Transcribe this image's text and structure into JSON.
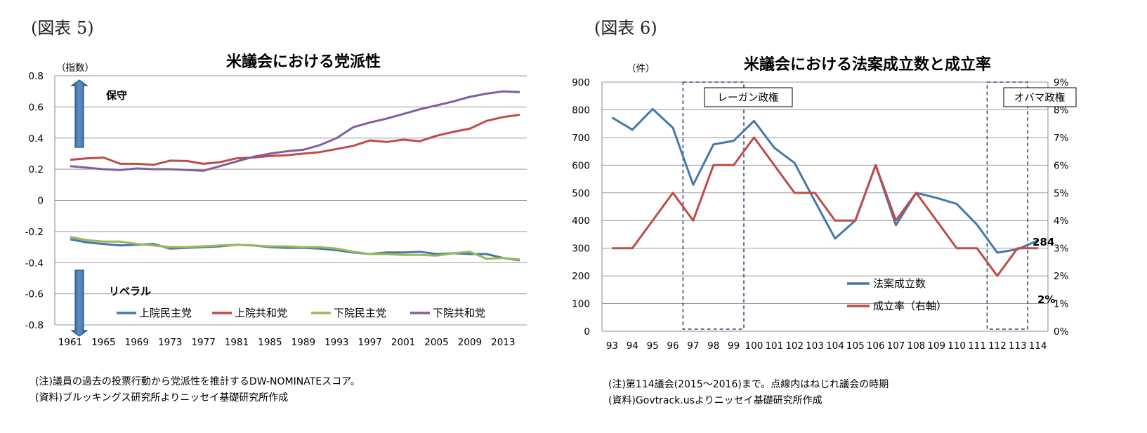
{
  "figures": [
    {
      "label": "(図表 5)",
      "notes": [
        "(注)議員の過去の投票行動から党派性を推計するDW-NOMINATEスコア。",
        "(資料)ブルッキングス研究所よりニッセイ基礎研究所作成"
      ],
      "annotations": {
        "up_label": "保守",
        "down_label": "リベラル"
      }
    },
    {
      "label": "(図表 6)",
      "notes": [
        "(注)第114議会(2015～2016)まで。点線内はねじれ議会の時期",
        "(資料)Govtrack.usよりニッセイ基礎研究所作成"
      ],
      "annotations": {
        "reagan": "レーガン政権",
        "obama": "オバマ政権",
        "last_count": "284",
        "last_rate": "2%"
      }
    }
  ],
  "chart_data": [
    {
      "type": "line",
      "title": "米議会における党派性",
      "ylabel": "（指数）",
      "ylim": [
        -0.8,
        0.8
      ],
      "yticks": [
        "0.8",
        "0.6",
        "0.4",
        "0.2",
        "0",
        "-0.2",
        "-0.4",
        "-0.6",
        "-0.8"
      ],
      "ytick_values": [
        0.8,
        0.6,
        0.4,
        0.2,
        0,
        -0.2,
        -0.4,
        -0.6,
        -0.8
      ],
      "x": [
        1961,
        1963,
        1965,
        1967,
        1969,
        1971,
        1973,
        1975,
        1977,
        1979,
        1981,
        1983,
        1985,
        1987,
        1989,
        1991,
        1993,
        1995,
        1997,
        1999,
        2001,
        2003,
        2005,
        2007,
        2009,
        2011,
        2013,
        2015
      ],
      "xticks": [
        "1961",
        "1965",
        "1969",
        "1973",
        "1977",
        "1981",
        "1985",
        "1989",
        "1993",
        "1997",
        "2001",
        "2005",
        "2009",
        "2013"
      ],
      "xtick_values": [
        1961,
        1965,
        1969,
        1973,
        1977,
        1981,
        1985,
        1989,
        1993,
        1997,
        2001,
        2005,
        2009,
        2013
      ],
      "series": [
        {
          "name": "上院民主党",
          "color": "#4677ab",
          "values": [
            -0.25,
            -0.27,
            -0.28,
            -0.29,
            -0.285,
            -0.28,
            -0.31,
            -0.305,
            -0.3,
            -0.295,
            -0.285,
            -0.29,
            -0.3,
            -0.305,
            -0.305,
            -0.31,
            -0.32,
            -0.335,
            -0.345,
            -0.335,
            -0.335,
            -0.33,
            -0.345,
            -0.34,
            -0.345,
            -0.345,
            -0.37,
            -0.385
          ]
        },
        {
          "name": "上院共和党",
          "color": "#bf4b48",
          "values": [
            0.26,
            0.27,
            0.275,
            0.235,
            0.235,
            0.228,
            0.255,
            0.253,
            0.235,
            0.245,
            0.27,
            0.275,
            0.285,
            0.29,
            0.3,
            0.31,
            0.33,
            0.35,
            0.385,
            0.375,
            0.39,
            0.38,
            0.415,
            0.44,
            0.46,
            0.51,
            0.535,
            0.55
          ]
        },
        {
          "name": "下院民主党",
          "color": "#98b953",
          "values": [
            -0.235,
            -0.255,
            -0.265,
            -0.265,
            -0.28,
            -0.29,
            -0.3,
            -0.3,
            -0.295,
            -0.29,
            -0.285,
            -0.29,
            -0.295,
            -0.295,
            -0.3,
            -0.3,
            -0.31,
            -0.33,
            -0.345,
            -0.345,
            -0.35,
            -0.35,
            -0.355,
            -0.34,
            -0.33,
            -0.375,
            -0.37,
            -0.38
          ]
        },
        {
          "name": "下院共和党",
          "color": "#7f5f9f",
          "values": [
            0.22,
            0.21,
            0.2,
            0.195,
            0.205,
            0.2,
            0.2,
            0.195,
            0.19,
            0.22,
            0.25,
            0.28,
            0.3,
            0.315,
            0.325,
            0.355,
            0.4,
            0.47,
            0.5,
            0.525,
            0.555,
            0.585,
            0.61,
            0.635,
            0.665,
            0.685,
            0.7,
            0.695
          ]
        }
      ]
    },
    {
      "type": "line",
      "title": "米議会における法案成立数と成立率",
      "ylabel": "（件）",
      "ylim": [
        0,
        900
      ],
      "y2lim": [
        0,
        9
      ],
      "yticks": [
        "900",
        "800",
        "700",
        "600",
        "500",
        "400",
        "300",
        "200",
        "100",
        "0"
      ],
      "ytick_values": [
        900,
        800,
        700,
        600,
        500,
        400,
        300,
        200,
        100,
        0
      ],
      "y2ticks": [
        "9%",
        "8%",
        "7%",
        "6%",
        "5%",
        "4%",
        "3%",
        "2%",
        "1%",
        "0%"
      ],
      "y2tick_values": [
        9,
        8,
        7,
        6,
        5,
        4,
        3,
        2,
        1,
        0
      ],
      "categories": [
        "93",
        "94",
        "95",
        "96",
        "97",
        "98",
        "99",
        "100",
        "101",
        "102",
        "103",
        "104",
        "105",
        "106",
        "107",
        "108",
        "109",
        "110",
        "111",
        "112",
        "113",
        "114"
      ],
      "shaded_periods": [
        [
          "97",
          "99"
        ],
        [
          "112",
          "113"
        ]
      ],
      "series": [
        {
          "name": "法案成立数",
          "axis": "left",
          "color": "#4677ab",
          "values": [
            772,
            728,
            803,
            735,
            529,
            675,
            688,
            760,
            663,
            608,
            470,
            335,
            400,
            600,
            383,
            500,
            482,
            460,
            385,
            284,
            296,
            328
          ]
        },
        {
          "name": "成立率（右軸）",
          "axis": "right",
          "color": "#bf4b48",
          "values": [
            3,
            3,
            4,
            5,
            4,
            6,
            6,
            7,
            6,
            5,
            5,
            4,
            4,
            6,
            4,
            5,
            4,
            3,
            3,
            2,
            3,
            3
          ]
        }
      ]
    }
  ]
}
